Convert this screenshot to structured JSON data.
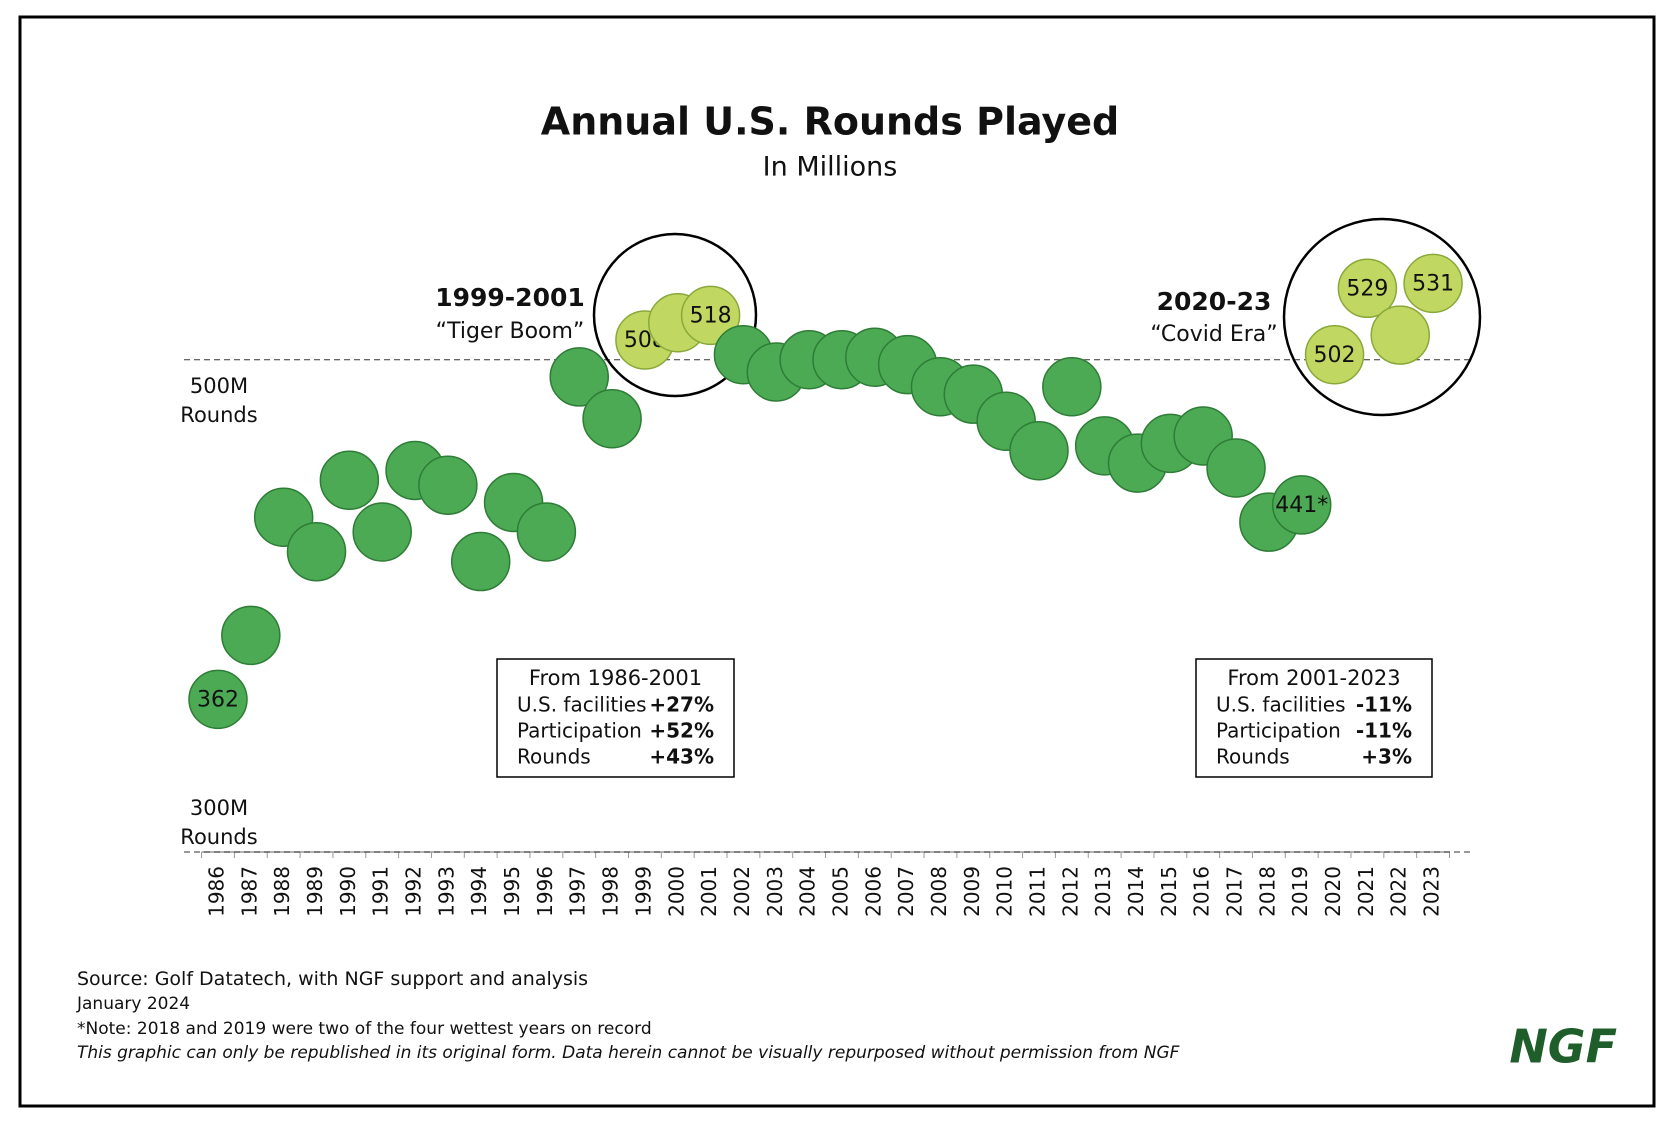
{
  "chart_data": {
    "type": "dot",
    "title": "Annual U.S. Rounds Played",
    "subtitle": "In Millions",
    "categories": [
      "1986",
      "1987",
      "1988",
      "1989",
      "1990",
      "1991",
      "1992",
      "1993",
      "1994",
      "1995",
      "1996",
      "1997",
      "1998",
      "1999",
      "2000",
      "2001",
      "2002",
      "2003",
      "2004",
      "2005",
      "2006",
      "2007",
      "2008",
      "2009",
      "2010",
      "2011",
      "2012",
      "2013",
      "2014",
      "2015",
      "2016",
      "2017",
      "2018",
      "2019",
      "2020",
      "2021",
      "2022",
      "2023"
    ],
    "values": [
      362,
      388,
      436,
      422,
      451,
      430,
      455,
      449,
      418,
      442,
      430,
      493,
      476,
      508,
      515,
      518,
      502,
      495,
      500,
      500,
      501,
      498,
      489,
      486,
      475,
      463,
      489,
      465,
      458,
      466,
      469,
      456,
      434,
      441,
      502,
      529,
      510,
      531
    ],
    "value_labels": [
      "362",
      null,
      null,
      null,
      null,
      null,
      null,
      null,
      null,
      null,
      null,
      null,
      null,
      "508",
      null,
      "518",
      null,
      null,
      null,
      null,
      null,
      null,
      null,
      null,
      null,
      null,
      null,
      null,
      null,
      null,
      null,
      null,
      null,
      "441*",
      "502",
      "529",
      null,
      "531"
    ],
    "colors": [
      "#4caa55",
      "#4caa55",
      "#4caa55",
      "#4caa55",
      "#4caa55",
      "#4caa55",
      "#4caa55",
      "#4caa55",
      "#4caa55",
      "#4caa55",
      "#4caa55",
      "#4caa55",
      "#4caa55",
      "#c0d861",
      "#c0d861",
      "#c0d861",
      "#4caa55",
      "#4caa55",
      "#4caa55",
      "#4caa55",
      "#4caa55",
      "#4caa55",
      "#4caa55",
      "#4caa55",
      "#4caa55",
      "#4caa55",
      "#4caa55",
      "#4caa55",
      "#4caa55",
      "#4caa55",
      "#4caa55",
      "#4caa55",
      "#4caa55",
      "#4caa55",
      "#c0d861",
      "#c0d861",
      "#c0d861",
      "#c0d861"
    ],
    "ylim": [
      300,
      560
    ],
    "yticks": [
      {
        "value": 500,
        "label": "500M Rounds"
      },
      {
        "value": 300,
        "label": "300M Rounds"
      }
    ],
    "grid": true,
    "annotations": [
      {
        "title": "1999-2001",
        "text": "“Tiger Boom”"
      },
      {
        "title": "2020-23",
        "text": "“Covid Era”"
      }
    ],
    "boxes": [
      {
        "title": "From 1986-2001",
        "rows": [
          [
            "U.S. facilities",
            "+27%"
          ],
          [
            "Participation",
            "+52%"
          ],
          [
            "Rounds",
            "+43%"
          ]
        ]
      },
      {
        "title": "From 2001-2023",
        "rows": [
          [
            "U.S. facilities",
            "-11%"
          ],
          [
            "Participation",
            "-11%"
          ],
          [
            "Rounds",
            "+3%"
          ]
        ]
      }
    ],
    "source": "Source: Golf Datatech, with NGF support and analysis",
    "date": "January 2024",
    "note": "*Note: 2018 and 2019 were two of the four wettest years on record",
    "disclaimer": "This graphic can only be republished in its original form. Data herein cannot be visually repurposed without permission from NGF",
    "logo": "NGF"
  }
}
